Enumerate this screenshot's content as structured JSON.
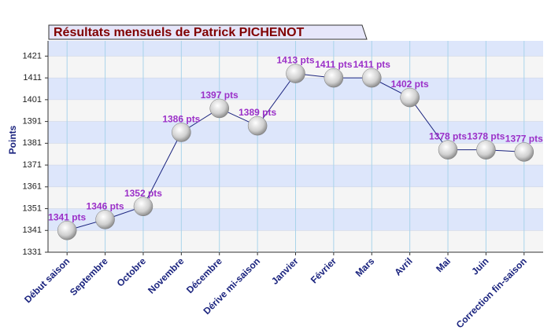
{
  "chart_data": {
    "type": "line",
    "title": "Résultats mensuels de  Patrick PICHENOT",
    "y_label": "Points",
    "categories": [
      "Début saison",
      "Septembre",
      "Octobre",
      "Novembre",
      "Décembre",
      "Dérive mi-saison",
      "Janvier",
      "Février",
      "Mars",
      "Avril",
      "Mai",
      "Juin",
      "Correction fin-saison"
    ],
    "values": [
      1341,
      1346,
      1352,
      1386,
      1397,
      1389,
      1413,
      1411,
      1411,
      1402,
      1378,
      1378,
      1377
    ],
    "value_labels": [
      "1341 pts",
      "1346 pts",
      "1352 pts",
      "1386 pts",
      "1397 pts",
      "1389 pts",
      "1413 pts",
      "1411 pts",
      "1411 pts",
      "1402 pts",
      "1378 pts",
      "1378 pts",
      "1377 pts"
    ],
    "color": "#1a237e",
    "ylim": [
      1331,
      1428
    ],
    "yticks": [
      1331,
      1341,
      1351,
      1361,
      1371,
      1381,
      1391,
      1401,
      1411,
      1421
    ],
    "grid": true
  }
}
